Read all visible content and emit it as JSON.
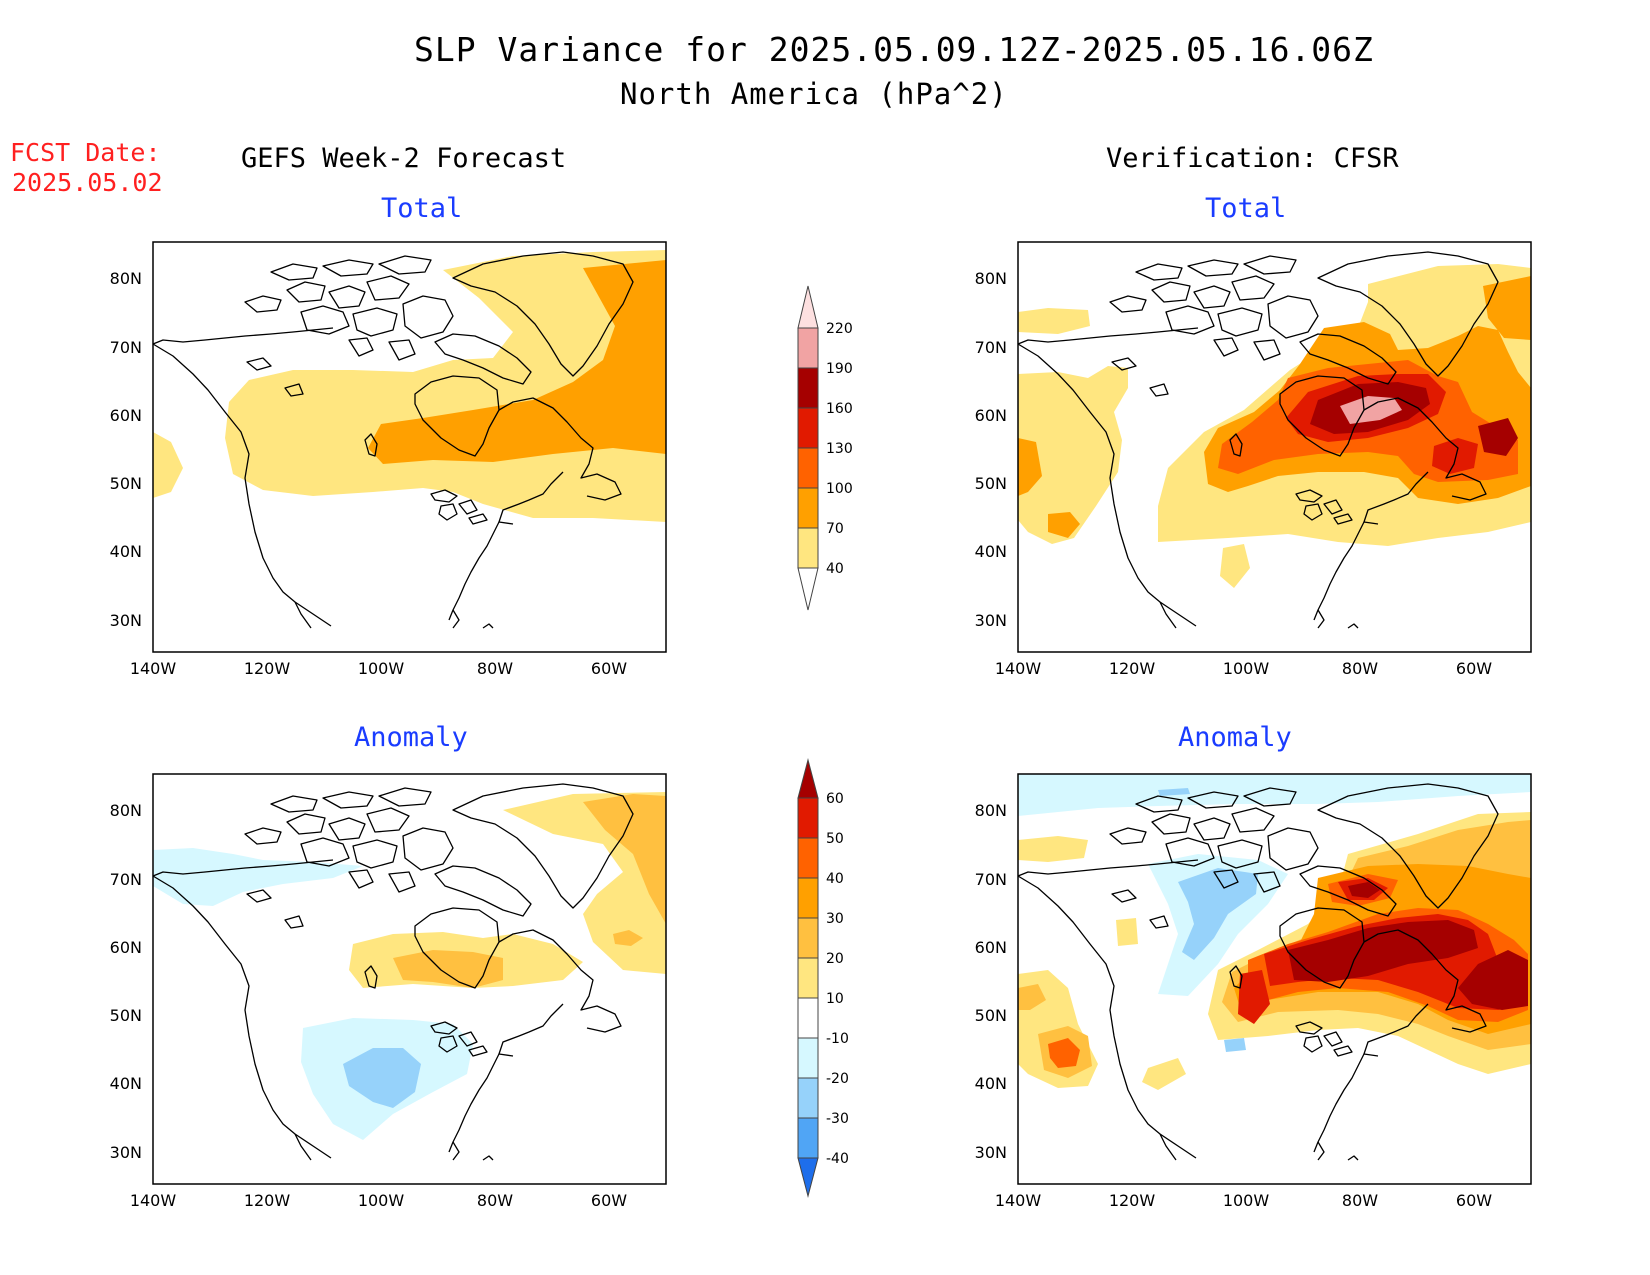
{
  "header": {
    "title": "SLP Variance for 2025.05.09.12Z-2025.05.16.06Z",
    "subtitle": "North America (hPa^2)",
    "fcst_label": "FCST Date:",
    "fcst_date": "2025.05.02"
  },
  "columns": {
    "left": "GEFS Week-2 Forecast",
    "right": "Verification: CFSR"
  },
  "panels": {
    "top_left": "Total",
    "top_right": "Total",
    "bottom_left": "Anomaly",
    "bottom_right": "Anomaly"
  },
  "axes": {
    "lat_labels": [
      "80N",
      "70N",
      "60N",
      "50N",
      "40N",
      "30N"
    ],
    "lon_labels": [
      "140W",
      "120W",
      "100W",
      "80W",
      "60W"
    ],
    "lat_values": [
      80,
      70,
      60,
      50,
      40,
      30
    ],
    "lon_values": [
      -140,
      -120,
      -100,
      -80,
      -60
    ],
    "lat_range": [
      25,
      85
    ],
    "lon_range": [
      -140,
      -50
    ]
  },
  "colorbars": {
    "total": {
      "labels": [
        "40",
        "70",
        "100",
        "130",
        "160",
        "190",
        "220"
      ],
      "colors": [
        "#ffe680",
        "#ffa000",
        "#ff6200",
        "#e11a00",
        "#a50000",
        "#f1a3a3",
        "#fde0e0"
      ]
    },
    "anomaly": {
      "labels": [
        "60",
        "50",
        "40",
        "30",
        "20",
        "10",
        "-10",
        "-20",
        "-30",
        "-40"
      ],
      "colors_top_down": [
        "#a50000",
        "#e11a00",
        "#ff6200",
        "#ffa000",
        "#ffc040",
        "#ffe680",
        "#ffffff",
        "#d6f8ff",
        "#96d2fa",
        "#50a5f5",
        "#1e6eeb",
        "#0f4fd0"
      ]
    }
  },
  "palette": {
    "yellow": "#ffe680",
    "light_orange": "#ffc040",
    "orange": "#ffa000",
    "dark_orange": "#ff6200",
    "red": "#e11a00",
    "dark_red": "#a50000",
    "pink": "#f1a3a3",
    "light_pink": "#fde0e0",
    "light_blue": "#d6f8ff",
    "blue": "#96d2fa"
  }
}
